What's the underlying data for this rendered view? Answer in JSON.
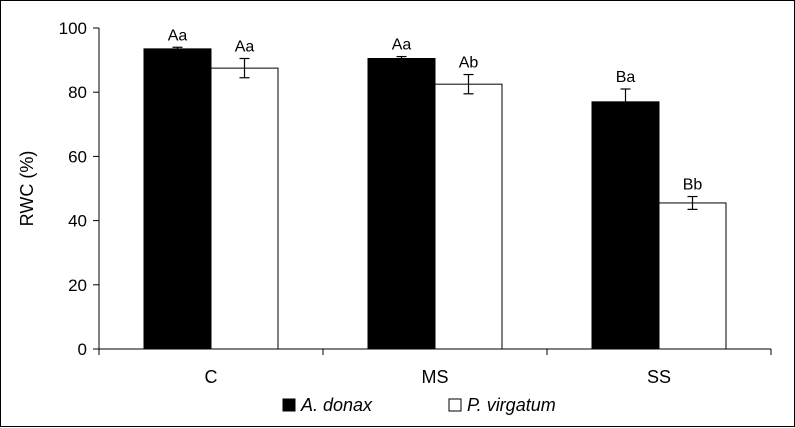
{
  "chart_data": {
    "type": "bar",
    "categories": [
      "C",
      "MS",
      "SS"
    ],
    "ylabel": "RWC (%)",
    "xlabel": "",
    "ylim": [
      0,
      100
    ],
    "yticks": [
      0,
      20,
      40,
      60,
      80,
      100
    ],
    "grid": false,
    "legend_position": "bottom",
    "series": [
      {
        "name": "A. donax",
        "color": "#000000",
        "values": [
          93.5,
          90.5,
          77.0
        ],
        "errors": [
          0.5,
          0.6,
          4.0
        ],
        "labels": [
          "Aa",
          "Aa",
          "Ba"
        ]
      },
      {
        "name": "P. virgatum",
        "color": "#ffffff",
        "values": [
          87.5,
          82.5,
          45.5
        ],
        "errors": [
          3.0,
          3.0,
          2.0
        ],
        "labels": [
          "Aa",
          "Ab",
          "Bb"
        ]
      }
    ]
  }
}
